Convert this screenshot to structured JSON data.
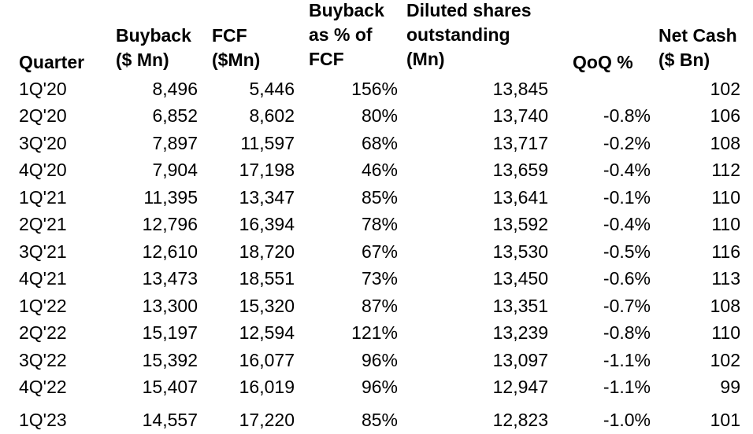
{
  "table": {
    "headers": {
      "quarter": [
        "Quarter"
      ],
      "buyback": [
        "Buyback",
        "($ Mn)"
      ],
      "fcf": [
        "FCF",
        "($Mn)"
      ],
      "buyback_pct": [
        "Buyback",
        "as % of",
        "FCF"
      ],
      "shares": [
        "Diluted shares",
        "outstanding",
        "(Mn)"
      ],
      "qoq": [
        "QoQ %"
      ],
      "net_cash": [
        "Net Cash",
        "($ Bn)"
      ]
    },
    "rows": [
      {
        "quarter": "1Q'20",
        "buyback": "8,496",
        "fcf": "5,446",
        "pct": "156%",
        "shares": "13,845",
        "qoq": "",
        "cash": "102"
      },
      {
        "quarter": "2Q'20",
        "buyback": "6,852",
        "fcf": "8,602",
        "pct": "80%",
        "shares": "13,740",
        "qoq": "-0.8%",
        "cash": "106"
      },
      {
        "quarter": "3Q'20",
        "buyback": "7,897",
        "fcf": "11,597",
        "pct": "68%",
        "shares": "13,717",
        "qoq": "-0.2%",
        "cash": "108"
      },
      {
        "quarter": "4Q'20",
        "buyback": "7,904",
        "fcf": "17,198",
        "pct": "46%",
        "shares": "13,659",
        "qoq": "-0.4%",
        "cash": "112"
      },
      {
        "quarter": "1Q'21",
        "buyback": "11,395",
        "fcf": "13,347",
        "pct": "85%",
        "shares": "13,641",
        "qoq": "-0.1%",
        "cash": "110"
      },
      {
        "quarter": "2Q'21",
        "buyback": "12,796",
        "fcf": "16,394",
        "pct": "78%",
        "shares": "13,592",
        "qoq": "-0.4%",
        "cash": "110"
      },
      {
        "quarter": "3Q'21",
        "buyback": "12,610",
        "fcf": "18,720",
        "pct": "67%",
        "shares": "13,530",
        "qoq": "-0.5%",
        "cash": "116"
      },
      {
        "quarter": "4Q'21",
        "buyback": "13,473",
        "fcf": "18,551",
        "pct": "73%",
        "shares": "13,450",
        "qoq": "-0.6%",
        "cash": "113"
      },
      {
        "quarter": "1Q'22",
        "buyback": "13,300",
        "fcf": "15,320",
        "pct": "87%",
        "shares": "13,351",
        "qoq": "-0.7%",
        "cash": "108"
      },
      {
        "quarter": "2Q'22",
        "buyback": "15,197",
        "fcf": "12,594",
        "pct": "121%",
        "shares": "13,239",
        "qoq": "-0.8%",
        "cash": "110"
      },
      {
        "quarter": "3Q'22",
        "buyback": "15,392",
        "fcf": "16,077",
        "pct": "96%",
        "shares": "13,097",
        "qoq": "-1.1%",
        "cash": "102"
      },
      {
        "quarter": "4Q'22",
        "buyback": "15,407",
        "fcf": "16,019",
        "pct": "96%",
        "shares": "12,947",
        "qoq": "-1.1%",
        "cash": "99"
      },
      {
        "quarter": "1Q'23",
        "buyback": "14,557",
        "fcf": "17,220",
        "pct": "85%",
        "shares": "12,823",
        "qoq": "-1.0%",
        "cash": "101"
      }
    ]
  },
  "chart_data": {
    "type": "table",
    "title": "",
    "columns": [
      "Quarter",
      "Buyback ($ Mn)",
      "FCF ($Mn)",
      "Buyback as % of FCF",
      "Diluted shares outstanding (Mn)",
      "QoQ %",
      "Net Cash ($ Bn)"
    ],
    "categories": [
      "1Q'20",
      "2Q'20",
      "3Q'20",
      "4Q'20",
      "1Q'21",
      "2Q'21",
      "3Q'21",
      "4Q'21",
      "1Q'22",
      "2Q'22",
      "3Q'22",
      "4Q'22",
      "1Q'23"
    ],
    "series": [
      {
        "name": "Buyback ($ Mn)",
        "values": [
          8496,
          6852,
          7897,
          7904,
          11395,
          12796,
          12610,
          13473,
          13300,
          15197,
          15392,
          15407,
          14557
        ]
      },
      {
        "name": "FCF ($Mn)",
        "values": [
          5446,
          8602,
          11597,
          17198,
          13347,
          16394,
          18720,
          18551,
          15320,
          12594,
          16077,
          16019,
          17220
        ]
      },
      {
        "name": "Buyback as % of FCF",
        "values": [
          156,
          80,
          68,
          46,
          85,
          78,
          67,
          73,
          87,
          121,
          96,
          96,
          85
        ]
      },
      {
        "name": "Diluted shares outstanding (Mn)",
        "values": [
          13845,
          13740,
          13717,
          13659,
          13641,
          13592,
          13530,
          13450,
          13351,
          13239,
          13097,
          12947,
          12823
        ]
      },
      {
        "name": "QoQ %",
        "values": [
          null,
          -0.8,
          -0.2,
          -0.4,
          -0.1,
          -0.4,
          -0.5,
          -0.6,
          -0.7,
          -0.8,
          -1.1,
          -1.1,
          -1.0
        ]
      },
      {
        "name": "Net Cash ($ Bn)",
        "values": [
          102,
          106,
          108,
          112,
          110,
          110,
          116,
          113,
          108,
          110,
          102,
          99,
          101
        ]
      }
    ]
  }
}
